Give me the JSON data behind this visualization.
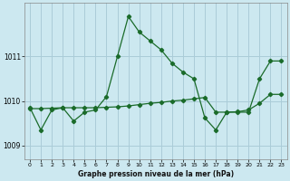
{
  "xlabel": "Graphe pression niveau de la mer (hPa)",
  "background_color": "#cce8f0",
  "grid_color": "#aaccd8",
  "line_color": "#1a6b2a",
  "ylim": [
    1008.7,
    1012.2
  ],
  "xlim": [
    -0.5,
    23.5
  ],
  "yticks": [
    1009,
    1010,
    1011
  ],
  "xticks": [
    0,
    1,
    2,
    3,
    4,
    5,
    6,
    7,
    8,
    9,
    10,
    11,
    12,
    13,
    14,
    15,
    16,
    17,
    18,
    19,
    20,
    21,
    22,
    23
  ],
  "jagged_x": [
    0,
    1,
    2,
    3,
    4,
    5,
    6,
    7,
    8,
    9,
    10,
    11,
    12,
    13,
    14,
    15,
    16,
    17,
    18,
    19,
    20,
    21,
    22,
    23
  ],
  "jagged_y": [
    1009.85,
    1009.35,
    1009.8,
    1009.85,
    1009.55,
    1009.75,
    1009.8,
    1010.1,
    1011.0,
    1011.9,
    1011.55,
    1011.35,
    1011.15,
    1010.85,
    1010.65,
    1010.5,
    1009.62,
    1009.35,
    1009.75,
    1009.75,
    1009.75,
    1010.5,
    1010.9,
    1010.9
  ],
  "trend_x": [
    0,
    1,
    2,
    3,
    4,
    5,
    6,
    7,
    8,
    9,
    10,
    11,
    12,
    13,
    14,
    15,
    16,
    17,
    18,
    19,
    20,
    21,
    22,
    23
  ],
  "trend_y": [
    1009.82,
    1009.82,
    1009.84,
    1009.84,
    1009.84,
    1009.84,
    1009.85,
    1009.85,
    1009.86,
    1009.88,
    1009.9,
    1009.93,
    1009.96,
    1009.98,
    1010.0,
    1010.05,
    1010.08,
    1009.75,
    1009.75,
    1009.75,
    1009.78,
    1009.9,
    1010.1,
    1010.1
  ]
}
